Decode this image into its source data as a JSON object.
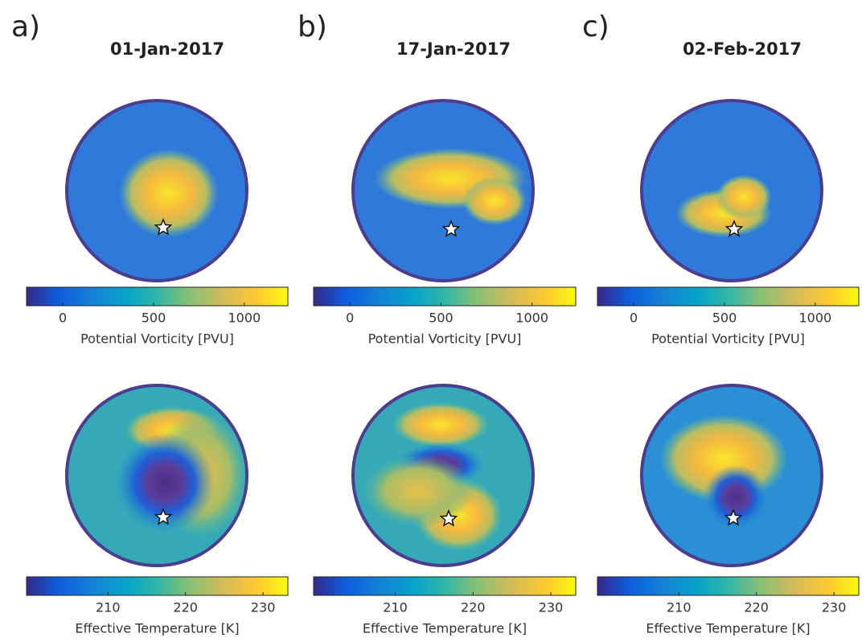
{
  "panels": [
    {
      "label": "a)",
      "title": "01-Jan-2017",
      "pv_colorbar": {
        "label": "Potential Vorticity [PVU]",
        "lim": [
          -200,
          1240
        ],
        "ticks": [
          0,
          500,
          1000
        ]
      },
      "temp_colorbar": {
        "label": "Effective Temperature [K]",
        "lim": [
          199.5,
          233.2
        ],
        "ticks": [
          210,
          220,
          230
        ]
      }
    },
    {
      "label": "b)",
      "title": "17-Jan-2017",
      "pv_colorbar": {
        "label": "Potential Vorticity [PVU]",
        "lim": [
          -200,
          1240
        ],
        "ticks": [
          0,
          500,
          1000
        ]
      },
      "temp_colorbar": {
        "label": "Effective Temperature [K]",
        "lim": [
          199.5,
          233.2
        ],
        "ticks": [
          210,
          220,
          230
        ]
      }
    },
    {
      "label": "c)",
      "title": "02-Feb-2017",
      "pv_colorbar": {
        "label": "Potential Vorticity [PVU]",
        "lim": [
          -200,
          1240
        ],
        "ticks": [
          0,
          500,
          1000
        ]
      },
      "temp_colorbar": {
        "label": "Effective Temperature [K]",
        "lim": [
          199.5,
          233.2
        ],
        "ticks": [
          210,
          220,
          230
        ]
      }
    }
  ]
}
